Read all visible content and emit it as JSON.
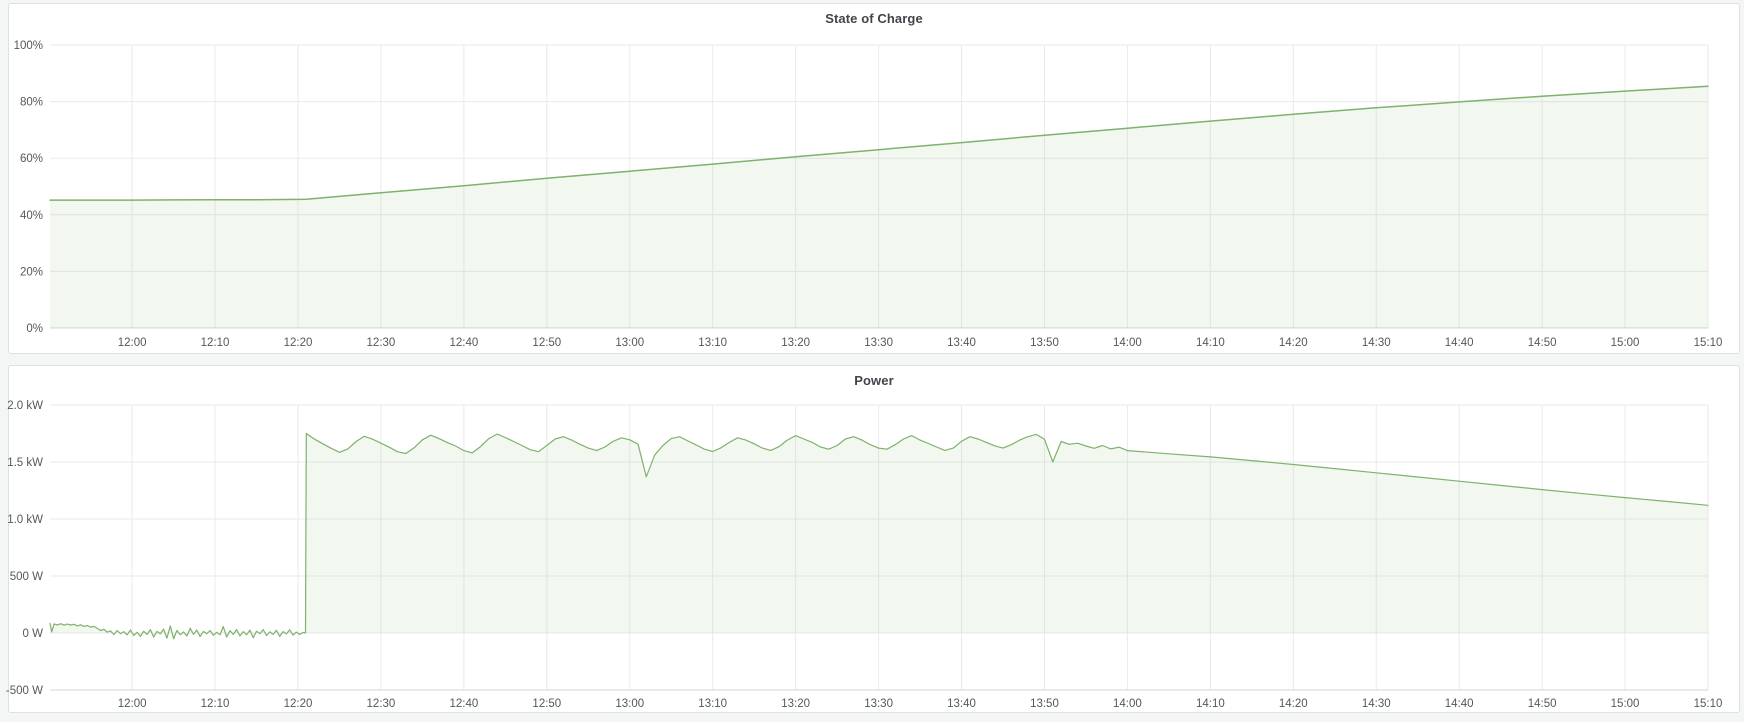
{
  "colors": {
    "series_green": "#7EB26D",
    "series_fill": "rgba(126,178,109,0.10)",
    "gridline": "#e9eaec",
    "axis_baseline": "#d4d6da",
    "axis_text": "#55575e",
    "title_text": "#414549",
    "panel_background": "#ffffff",
    "panel_border": "#dde0e5",
    "page_background": "#f4f5f5"
  },
  "chart_data": [
    {
      "type": "area",
      "title": "State of Charge",
      "ylabel": "",
      "y_unit": "percent",
      "ylim": [
        0,
        100
      ],
      "xlim_minutes_from_1200": [
        -9.9,
        190
      ],
      "grid": true,
      "legend": "none",
      "y_ticks": [
        {
          "value": 0,
          "label": "0%"
        },
        {
          "value": 20,
          "label": "20%"
        },
        {
          "value": 40,
          "label": "40%"
        },
        {
          "value": 60,
          "label": "60%"
        },
        {
          "value": 80,
          "label": "80%"
        },
        {
          "value": 100,
          "label": "100%"
        }
      ],
      "x_ticks": [
        {
          "m": 0,
          "label": "12:00"
        },
        {
          "m": 10,
          "label": "12:10"
        },
        {
          "m": 20,
          "label": "12:20"
        },
        {
          "m": 30,
          "label": "12:30"
        },
        {
          "m": 40,
          "label": "12:40"
        },
        {
          "m": 50,
          "label": "12:50"
        },
        {
          "m": 60,
          "label": "13:00"
        },
        {
          "m": 70,
          "label": "13:10"
        },
        {
          "m": 80,
          "label": "13:20"
        },
        {
          "m": 90,
          "label": "13:30"
        },
        {
          "m": 100,
          "label": "13:40"
        },
        {
          "m": 110,
          "label": "13:50"
        },
        {
          "m": 120,
          "label": "14:00"
        },
        {
          "m": 130,
          "label": "14:10"
        },
        {
          "m": 140,
          "label": "14:20"
        },
        {
          "m": 150,
          "label": "14:30"
        },
        {
          "m": 160,
          "label": "14:40"
        },
        {
          "m": 170,
          "label": "14:50"
        },
        {
          "m": 180,
          "label": "15:00"
        },
        {
          "m": 190,
          "label": "15:10"
        }
      ],
      "series": [
        {
          "name": "State of Charge",
          "color": "#7EB26D",
          "line_width": 1.5,
          "fill_to": 0,
          "points": [
            [
              -9.9,
              45.2
            ],
            [
              0,
              45.2
            ],
            [
              5,
              45.25
            ],
            [
              10,
              45.3
            ],
            [
              15,
              45.35
            ],
            [
              20,
              45.45
            ],
            [
              21,
              45.5
            ],
            [
              30,
              47.8
            ],
            [
              40,
              50.3
            ],
            [
              50,
              52.9
            ],
            [
              60,
              55.4
            ],
            [
              70,
              57.9
            ],
            [
              80,
              60.5
            ],
            [
              90,
              63.0
            ],
            [
              100,
              65.5
            ],
            [
              110,
              68.1
            ],
            [
              120,
              70.6
            ],
            [
              130,
              73.1
            ],
            [
              140,
              75.5
            ],
            [
              150,
              77.8
            ],
            [
              160,
              79.9
            ],
            [
              170,
              81.9
            ],
            [
              180,
              83.7
            ],
            [
              190,
              85.4
            ]
          ]
        }
      ]
    },
    {
      "type": "area",
      "title": "Power",
      "ylabel": "",
      "y_unit": "watts",
      "ylim": [
        -500,
        2000
      ],
      "xlim_minutes_from_1200": [
        -9.9,
        190
      ],
      "grid": true,
      "legend": "none",
      "y_ticks": [
        {
          "value": -500,
          "label": "-500 W"
        },
        {
          "value": 0,
          "label": "0 W"
        },
        {
          "value": 500,
          "label": "500 W"
        },
        {
          "value": 1000,
          "label": "1.0 kW"
        },
        {
          "value": 1500,
          "label": "1.5 kW"
        },
        {
          "value": 2000,
          "label": "2.0 kW"
        }
      ],
      "x_ticks": [
        {
          "m": 0,
          "label": "12:00"
        },
        {
          "m": 10,
          "label": "12:10"
        },
        {
          "m": 20,
          "label": "12:20"
        },
        {
          "m": 30,
          "label": "12:30"
        },
        {
          "m": 40,
          "label": "12:40"
        },
        {
          "m": 50,
          "label": "12:50"
        },
        {
          "m": 60,
          "label": "13:00"
        },
        {
          "m": 70,
          "label": "13:10"
        },
        {
          "m": 80,
          "label": "13:20"
        },
        {
          "m": 90,
          "label": "13:30"
        },
        {
          "m": 100,
          "label": "13:40"
        },
        {
          "m": 110,
          "label": "13:50"
        },
        {
          "m": 120,
          "label": "14:00"
        },
        {
          "m": 130,
          "label": "14:10"
        },
        {
          "m": 140,
          "label": "14:20"
        },
        {
          "m": 150,
          "label": "14:30"
        },
        {
          "m": 160,
          "label": "14:40"
        },
        {
          "m": 170,
          "label": "14:50"
        },
        {
          "m": 180,
          "label": "15:00"
        },
        {
          "m": 190,
          "label": "15:10"
        }
      ],
      "series": [
        {
          "name": "Power",
          "color": "#7EB26D",
          "line_width": 1.2,
          "fill_to": 0,
          "points": [
            [
              -9.9,
              85
            ],
            [
              -9.7,
              10
            ],
            [
              -9.4,
              80
            ],
            [
              -9,
              70
            ],
            [
              -8.6,
              82
            ],
            [
              -8.2,
              68
            ],
            [
              -7.8,
              78
            ],
            [
              -7.4,
              70
            ],
            [
              -7,
              76
            ],
            [
              -6.6,
              62
            ],
            [
              -6.2,
              72
            ],
            [
              -5.8,
              58
            ],
            [
              -5.4,
              66
            ],
            [
              -5,
              52
            ],
            [
              -4.6,
              58
            ],
            [
              -4.2,
              40
            ],
            [
              -3.8,
              22
            ],
            [
              -3.4,
              32
            ],
            [
              -3,
              8
            ],
            [
              -2.6,
              18
            ],
            [
              -2.2,
              -12
            ],
            [
              -1.8,
              22
            ],
            [
              -1.4,
              -6
            ],
            [
              -1,
              12
            ],
            [
              -0.6,
              -16
            ],
            [
              -0.2,
              26
            ],
            [
              0.2,
              -22
            ],
            [
              0.6,
              6
            ],
            [
              1,
              -30
            ],
            [
              1.4,
              16
            ],
            [
              1.8,
              -12
            ],
            [
              2.2,
              30
            ],
            [
              2.6,
              -36
            ],
            [
              3,
              14
            ],
            [
              3.4,
              -8
            ],
            [
              3.8,
              34
            ],
            [
              4.2,
              -46
            ],
            [
              4.6,
              62
            ],
            [
              5,
              -52
            ],
            [
              5.4,
              22
            ],
            [
              5.8,
              -16
            ],
            [
              6.2,
              10
            ],
            [
              6.6,
              -26
            ],
            [
              7,
              42
            ],
            [
              7.4,
              -12
            ],
            [
              7.8,
              26
            ],
            [
              8.2,
              -32
            ],
            [
              8.6,
              14
            ],
            [
              9,
              -6
            ],
            [
              9.4,
              22
            ],
            [
              9.8,
              -20
            ],
            [
              10.2,
              6
            ],
            [
              10.6,
              -16
            ],
            [
              11,
              56
            ],
            [
              11.4,
              -36
            ],
            [
              11.8,
              20
            ],
            [
              12.2,
              -12
            ],
            [
              12.6,
              30
            ],
            [
              13,
              -26
            ],
            [
              13.4,
              12
            ],
            [
              13.8,
              -16
            ],
            [
              14.2,
              26
            ],
            [
              14.6,
              -42
            ],
            [
              15,
              16
            ],
            [
              15.4,
              -6
            ],
            [
              15.8,
              30
            ],
            [
              16.2,
              -22
            ],
            [
              16.6,
              10
            ],
            [
              17,
              -12
            ],
            [
              17.4,
              24
            ],
            [
              17.8,
              -30
            ],
            [
              18.2,
              12
            ],
            [
              18.6,
              -8
            ],
            [
              19,
              28
            ],
            [
              19.4,
              -18
            ],
            [
              19.8,
              8
            ],
            [
              20.2,
              -12
            ],
            [
              20.6,
              4
            ],
            [
              20.9,
              0
            ],
            [
              21,
              1750
            ],
            [
              22,
              1700
            ],
            [
              23,
              1660
            ],
            [
              24,
              1620
            ],
            [
              25,
              1585
            ],
            [
              26,
              1615
            ],
            [
              27,
              1680
            ],
            [
              28,
              1725
            ],
            [
              29,
              1700
            ],
            [
              30,
              1665
            ],
            [
              31,
              1630
            ],
            [
              32,
              1590
            ],
            [
              33,
              1575
            ],
            [
              34,
              1625
            ],
            [
              35,
              1695
            ],
            [
              36,
              1735
            ],
            [
              37,
              1705
            ],
            [
              38,
              1670
            ],
            [
              39,
              1640
            ],
            [
              40,
              1600
            ],
            [
              41,
              1580
            ],
            [
              42,
              1635
            ],
            [
              43,
              1705
            ],
            [
              44,
              1745
            ],
            [
              45,
              1715
            ],
            [
              46,
              1680
            ],
            [
              47,
              1645
            ],
            [
              48,
              1608
            ],
            [
              49,
              1590
            ],
            [
              50,
              1645
            ],
            [
              51,
              1702
            ],
            [
              52,
              1722
            ],
            [
              53,
              1692
            ],
            [
              54,
              1655
            ],
            [
              55,
              1622
            ],
            [
              56,
              1600
            ],
            [
              57,
              1632
            ],
            [
              58,
              1682
            ],
            [
              59,
              1712
            ],
            [
              60,
              1695
            ],
            [
              61,
              1655
            ],
            [
              62,
              1370
            ],
            [
              63,
              1560
            ],
            [
              64,
              1645
            ],
            [
              65,
              1705
            ],
            [
              66,
              1722
            ],
            [
              67,
              1685
            ],
            [
              68,
              1650
            ],
            [
              69,
              1612
            ],
            [
              70,
              1592
            ],
            [
              71,
              1625
            ],
            [
              72,
              1672
            ],
            [
              73,
              1712
            ],
            [
              74,
              1692
            ],
            [
              75,
              1660
            ],
            [
              76,
              1622
            ],
            [
              77,
              1602
            ],
            [
              78,
              1635
            ],
            [
              79,
              1692
            ],
            [
              80,
              1732
            ],
            [
              81,
              1702
            ],
            [
              82,
              1672
            ],
            [
              83,
              1632
            ],
            [
              84,
              1612
            ],
            [
              85,
              1645
            ],
            [
              86,
              1702
            ],
            [
              87,
              1722
            ],
            [
              88,
              1692
            ],
            [
              89,
              1652
            ],
            [
              90,
              1622
            ],
            [
              91,
              1612
            ],
            [
              92,
              1652
            ],
            [
              93,
              1702
            ],
            [
              94,
              1732
            ],
            [
              95,
              1692
            ],
            [
              96,
              1662
            ],
            [
              97,
              1632
            ],
            [
              98,
              1602
            ],
            [
              99,
              1622
            ],
            [
              100,
              1682
            ],
            [
              101,
              1722
            ],
            [
              102,
              1702
            ],
            [
              103,
              1672
            ],
            [
              104,
              1642
            ],
            [
              105,
              1622
            ],
            [
              106,
              1652
            ],
            [
              107,
              1692
            ],
            [
              108,
              1722
            ],
            [
              109,
              1742
            ],
            [
              110,
              1700
            ],
            [
              111,
              1500
            ],
            [
              112,
              1680
            ],
            [
              113,
              1655
            ],
            [
              114,
              1665
            ],
            [
              115,
              1640
            ],
            [
              116,
              1620
            ],
            [
              117,
              1645
            ],
            [
              118,
              1615
            ],
            [
              119,
              1630
            ],
            [
              120,
              1600
            ],
            [
              125,
              1572
            ],
            [
              130,
              1545
            ],
            [
              135,
              1512
            ],
            [
              140,
              1478
            ],
            [
              145,
              1442
            ],
            [
              150,
              1405
            ],
            [
              155,
              1368
            ],
            [
              160,
              1332
            ],
            [
              165,
              1295
            ],
            [
              170,
              1258
            ],
            [
              175,
              1222
            ],
            [
              180,
              1188
            ],
            [
              185,
              1154
            ],
            [
              190,
              1120
            ]
          ]
        }
      ]
    }
  ]
}
